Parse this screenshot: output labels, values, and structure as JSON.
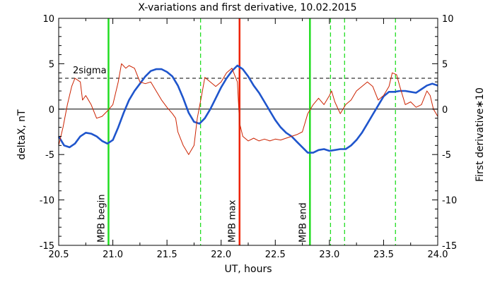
{
  "chart_data": {
    "type": "line",
    "title": "X-variations and first derivative, 10.02.2015",
    "xlabel": "UT, hours",
    "ylabel_left": "deltaX, nT",
    "ylabel_right": "First derivative∗10",
    "xlim": [
      20.5,
      24.0
    ],
    "ylim": [
      -15,
      10
    ],
    "x_ticks": [
      20.5,
      21.0,
      21.5,
      22.0,
      22.5,
      23.0,
      23.5,
      24.0
    ],
    "x_tick_labels": [
      "20.5",
      "21.0",
      "21.5",
      "22.0",
      "22.5",
      "23.0",
      "23.5",
      "24.0"
    ],
    "y_ticks": [
      -15,
      -10,
      -5,
      0,
      5,
      10
    ],
    "y_tick_labels": [
      "-15",
      "-10",
      "-5",
      "0",
      "5",
      "10"
    ],
    "colors": {
      "deltaX": "#1f55cc",
      "derivative": "#cc2200",
      "mpb": "#22dd22",
      "max": "#ee2200"
    },
    "zero_line": 0,
    "sigma_level": 3.4,
    "sigma_label": "2sigma",
    "series": [
      {
        "key": "deltaX",
        "points": [
          [
            20.5,
            -3.0
          ],
          [
            20.55,
            -4.0
          ],
          [
            20.6,
            -4.2
          ],
          [
            20.65,
            -3.8
          ],
          [
            20.7,
            -3.0
          ],
          [
            20.75,
            -2.6
          ],
          [
            20.8,
            -2.7
          ],
          [
            20.85,
            -3.0
          ],
          [
            20.9,
            -3.5
          ],
          [
            20.95,
            -3.8
          ],
          [
            21.0,
            -3.4
          ],
          [
            21.05,
            -2.0
          ],
          [
            21.1,
            -0.4
          ],
          [
            21.15,
            1.0
          ],
          [
            21.2,
            2.0
          ],
          [
            21.25,
            2.8
          ],
          [
            21.3,
            3.6
          ],
          [
            21.35,
            4.2
          ],
          [
            21.4,
            4.4
          ],
          [
            21.45,
            4.4
          ],
          [
            21.5,
            4.1
          ],
          [
            21.55,
            3.6
          ],
          [
            21.6,
            2.6
          ],
          [
            21.65,
            1.2
          ],
          [
            21.7,
            -0.4
          ],
          [
            21.75,
            -1.4
          ],
          [
            21.8,
            -1.6
          ],
          [
            21.85,
            -1.0
          ],
          [
            21.9,
            0.0
          ],
          [
            21.95,
            1.2
          ],
          [
            22.0,
            2.4
          ],
          [
            22.05,
            3.4
          ],
          [
            22.1,
            4.2
          ],
          [
            22.15,
            4.8
          ],
          [
            22.2,
            4.4
          ],
          [
            22.25,
            3.6
          ],
          [
            22.3,
            2.6
          ],
          [
            22.35,
            1.8
          ],
          [
            22.4,
            0.8
          ],
          [
            22.45,
            -0.2
          ],
          [
            22.5,
            -1.2
          ],
          [
            22.55,
            -2.0
          ],
          [
            22.6,
            -2.6
          ],
          [
            22.65,
            -3.0
          ],
          [
            22.7,
            -3.6
          ],
          [
            22.75,
            -4.2
          ],
          [
            22.8,
            -4.8
          ],
          [
            22.85,
            -4.8
          ],
          [
            22.9,
            -4.5
          ],
          [
            22.95,
            -4.4
          ],
          [
            23.0,
            -4.6
          ],
          [
            23.05,
            -4.5
          ],
          [
            23.1,
            -4.4
          ],
          [
            23.15,
            -4.4
          ],
          [
            23.2,
            -4.0
          ],
          [
            23.25,
            -3.4
          ],
          [
            23.3,
            -2.6
          ],
          [
            23.35,
            -1.6
          ],
          [
            23.4,
            -0.6
          ],
          [
            23.45,
            0.4
          ],
          [
            23.5,
            1.4
          ],
          [
            23.55,
            1.9
          ],
          [
            23.6,
            1.9
          ],
          [
            23.65,
            2.0
          ],
          [
            23.7,
            2.0
          ],
          [
            23.75,
            1.9
          ],
          [
            23.8,
            1.8
          ],
          [
            23.85,
            2.2
          ],
          [
            23.9,
            2.6
          ],
          [
            23.95,
            2.8
          ],
          [
            24.0,
            2.6
          ]
        ]
      },
      {
        "key": "derivative",
        "points": [
          [
            20.5,
            -4.0
          ],
          [
            20.54,
            -2.0
          ],
          [
            20.58,
            0.5
          ],
          [
            20.62,
            2.5
          ],
          [
            20.65,
            3.4
          ],
          [
            20.7,
            3.0
          ],
          [
            20.72,
            1.0
          ],
          [
            20.75,
            1.5
          ],
          [
            20.8,
            0.5
          ],
          [
            20.85,
            -1.0
          ],
          [
            20.9,
            -0.8
          ],
          [
            20.95,
            -0.2
          ],
          [
            21.0,
            0.5
          ],
          [
            21.05,
            3.0
          ],
          [
            21.08,
            5.0
          ],
          [
            21.12,
            4.5
          ],
          [
            21.15,
            4.8
          ],
          [
            21.2,
            4.5
          ],
          [
            21.25,
            3.0
          ],
          [
            21.3,
            2.8
          ],
          [
            21.35,
            3.0
          ],
          [
            21.4,
            2.0
          ],
          [
            21.45,
            1.0
          ],
          [
            21.5,
            0.2
          ],
          [
            21.55,
            -0.5
          ],
          [
            21.58,
            -1.0
          ],
          [
            21.6,
            -2.5
          ],
          [
            21.65,
            -4.0
          ],
          [
            21.7,
            -5.0
          ],
          [
            21.75,
            -4.0
          ],
          [
            21.78,
            -1.0
          ],
          [
            21.82,
            1.5
          ],
          [
            21.85,
            3.5
          ],
          [
            21.9,
            3.0
          ],
          [
            21.95,
            2.5
          ],
          [
            22.0,
            3.0
          ],
          [
            22.05,
            4.0
          ],
          [
            22.1,
            4.5
          ],
          [
            22.15,
            3.0
          ],
          [
            22.17,
            -1.5
          ],
          [
            22.2,
            -3.0
          ],
          [
            22.25,
            -3.5
          ],
          [
            22.3,
            -3.2
          ],
          [
            22.35,
            -3.5
          ],
          [
            22.4,
            -3.3
          ],
          [
            22.45,
            -3.5
          ],
          [
            22.5,
            -3.3
          ],
          [
            22.55,
            -3.4
          ],
          [
            22.6,
            -3.2
          ],
          [
            22.65,
            -3.0
          ],
          [
            22.7,
            -2.8
          ],
          [
            22.75,
            -2.5
          ],
          [
            22.8,
            -0.5
          ],
          [
            22.85,
            0.5
          ],
          [
            22.9,
            1.2
          ],
          [
            22.95,
            0.5
          ],
          [
            23.0,
            1.5
          ],
          [
            23.02,
            2.0
          ],
          [
            23.05,
            0.8
          ],
          [
            23.1,
            -0.5
          ],
          [
            23.15,
            0.5
          ],
          [
            23.2,
            1.0
          ],
          [
            23.25,
            2.0
          ],
          [
            23.3,
            2.5
          ],
          [
            23.35,
            3.0
          ],
          [
            23.4,
            2.5
          ],
          [
            23.45,
            1.0
          ],
          [
            23.5,
            1.5
          ],
          [
            23.55,
            2.5
          ],
          [
            23.58,
            4.0
          ],
          [
            23.62,
            3.8
          ],
          [
            23.65,
            2.5
          ],
          [
            23.7,
            0.5
          ],
          [
            23.75,
            0.8
          ],
          [
            23.8,
            0.2
          ],
          [
            23.85,
            0.5
          ],
          [
            23.9,
            2.0
          ],
          [
            23.93,
            1.5
          ],
          [
            23.96,
            0.0
          ],
          [
            24.0,
            -0.8
          ]
        ]
      }
    ],
    "vlines": [
      {
        "x": 20.96,
        "style": "solid",
        "colorKey": "mpb",
        "label": "MPB begin"
      },
      {
        "x": 21.81,
        "style": "dashed",
        "colorKey": "mpb",
        "label": ""
      },
      {
        "x": 22.17,
        "style": "solid",
        "colorKey": "max",
        "label": "MPB max"
      },
      {
        "x": 22.82,
        "style": "solid",
        "colorKey": "mpb",
        "label": "MPB end"
      },
      {
        "x": 23.01,
        "style": "dashed",
        "colorKey": "mpb",
        "label": ""
      },
      {
        "x": 23.14,
        "style": "dashed",
        "colorKey": "mpb",
        "label": ""
      },
      {
        "x": 23.61,
        "style": "dashed",
        "colorKey": "mpb",
        "label": ""
      }
    ]
  }
}
